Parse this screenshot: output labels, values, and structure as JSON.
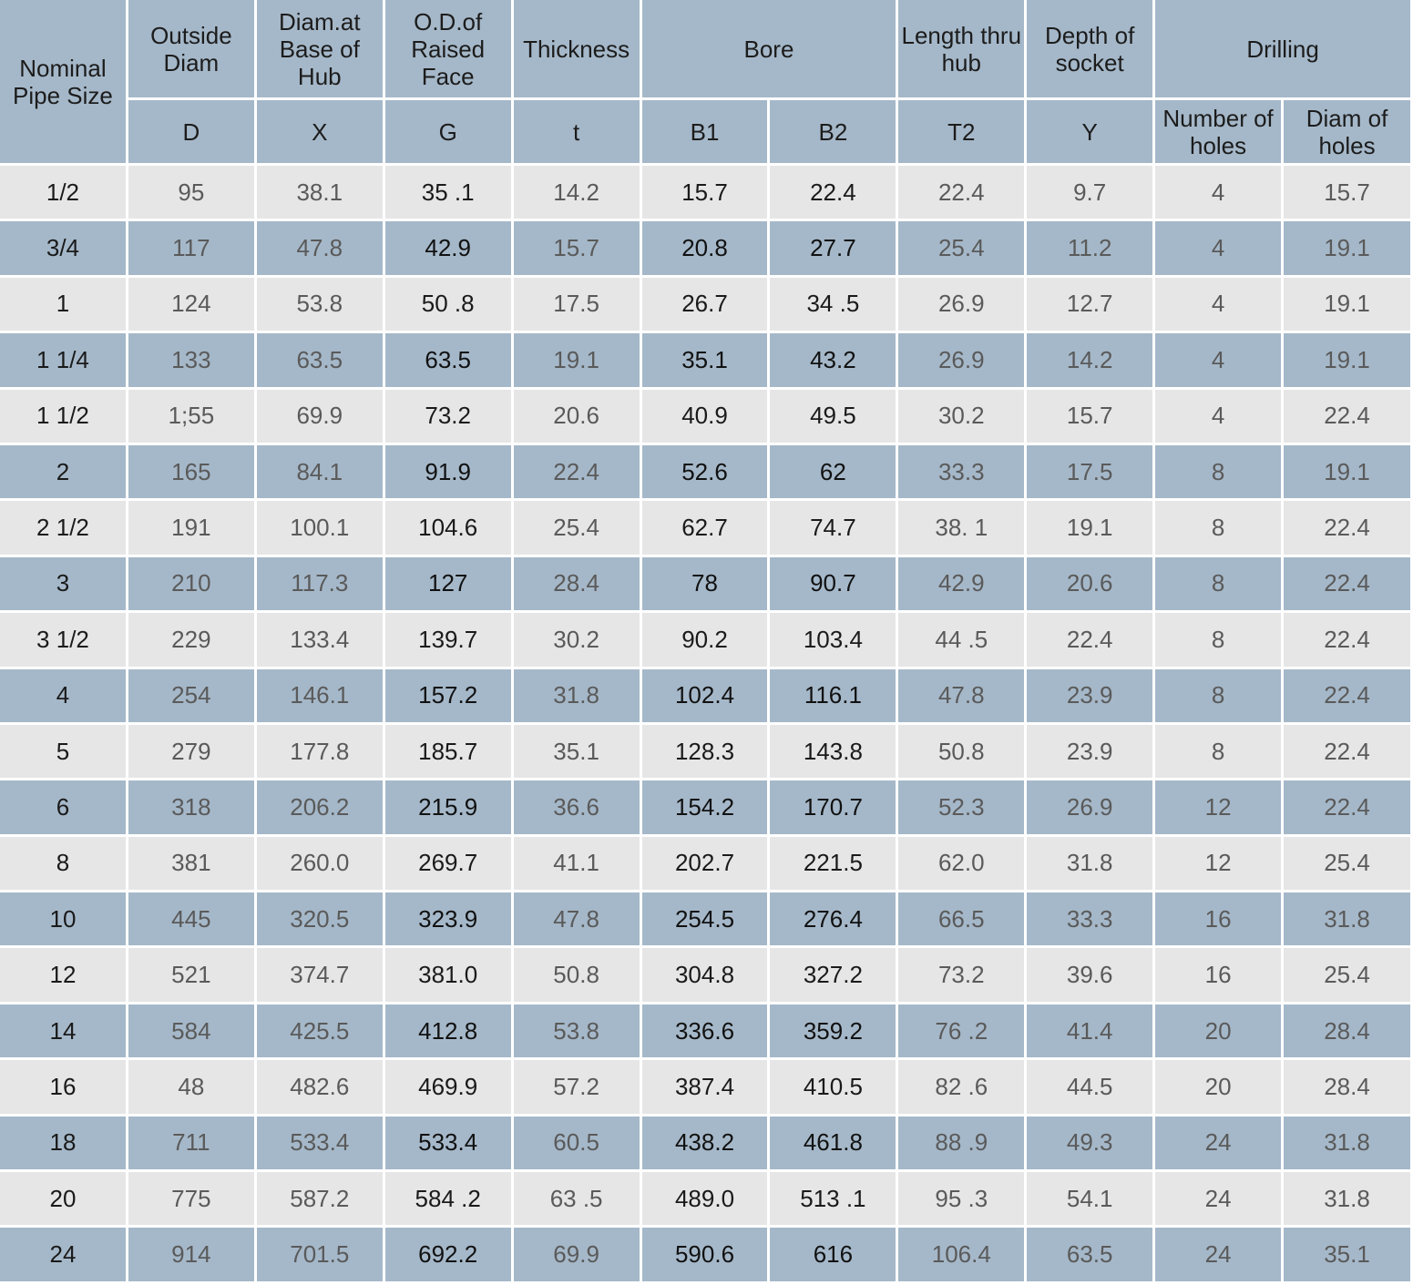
{
  "header": {
    "nominal_pipe_size": "Nominal Pipe Size",
    "outside_diam": "Outside Diam",
    "diam_base_hub": "Diam.at Base of Hub",
    "od_raised_face": "O.D.of Raised Face",
    "thickness": "Thickness",
    "bore": "Bore",
    "length_thru_hub": "Length thru hub",
    "depth_of_socket": "Depth of socket",
    "drilling": "Drilling",
    "sym_D": "D",
    "sym_X": "X",
    "sym_G": "G",
    "sym_t": "t",
    "sym_B1": "B1",
    "sym_B2": "B2",
    "sym_T2": "T2",
    "sym_Y": "Y",
    "number_of_holes": "Number of holes",
    "diam_of_holes": "Diam of holes"
  },
  "rows": [
    [
      "1/2",
      "95",
      "38.1",
      "35 .1",
      "14.2",
      "15.7",
      "22.4",
      "22.4",
      "9.7",
      "4",
      "15.7"
    ],
    [
      "3/4",
      "117",
      "47.8",
      "42.9",
      "15.7",
      "20.8",
      "27.7",
      "25.4",
      "11.2",
      "4",
      "19.1"
    ],
    [
      "1",
      "124",
      "53.8",
      "50 .8",
      "17.5",
      "26.7",
      "34 .5",
      "26.9",
      "12.7",
      "4",
      "19.1"
    ],
    [
      "1 1/4",
      "133",
      "63.5",
      "63.5",
      "19.1",
      "35.1",
      "43.2",
      "26.9",
      "14.2",
      "4",
      "19.1"
    ],
    [
      "1 1/2",
      "1;55",
      "69.9",
      "73.2",
      "20.6",
      "40.9",
      "49.5",
      "30.2",
      "15.7",
      "4",
      "22.4"
    ],
    [
      "2",
      "165",
      "84.1",
      "91.9",
      "22.4",
      "52.6",
      "62",
      "33.3",
      "17.5",
      "8",
      "19.1"
    ],
    [
      "2 1/2",
      "191",
      "100.1",
      "104.6",
      "25.4",
      "62.7",
      "74.7",
      "38. 1",
      "19.1",
      "8",
      "22.4"
    ],
    [
      "3",
      "210",
      "117.3",
      "127",
      "28.4",
      "78",
      "90.7",
      "42.9",
      "20.6",
      "8",
      "22.4"
    ],
    [
      "3 1/2",
      "229",
      "133.4",
      "139.7",
      "30.2",
      "90.2",
      "103.4",
      "44 .5",
      "22.4",
      "8",
      "22.4"
    ],
    [
      "4",
      "254",
      "146.1",
      "157.2",
      "31.8",
      "102.4",
      "116.1",
      "47.8",
      "23.9",
      "8",
      "22.4"
    ],
    [
      "5",
      "279",
      "177.8",
      "185.7",
      "35.1",
      "128.3",
      "143.8",
      "50.8",
      "23.9",
      "8",
      "22.4"
    ],
    [
      "6",
      "318",
      "206.2",
      "215.9",
      "36.6",
      "154.2",
      "170.7",
      "52.3",
      "26.9",
      "12",
      "22.4"
    ],
    [
      "8",
      "381",
      "260.0",
      "269.7",
      "41.1",
      "202.7",
      "221.5",
      "62.0",
      "31.8",
      "12",
      "25.4"
    ],
    [
      "10",
      "445",
      "320.5",
      "323.9",
      "47.8",
      "254.5",
      "276.4",
      "66.5",
      "33.3",
      "16",
      "31.8"
    ],
    [
      "12",
      "521",
      "374.7",
      "381.0",
      "50.8",
      "304.8",
      "327.2",
      "73.2",
      "39.6",
      "16",
      "25.4"
    ],
    [
      "14",
      "584",
      "425.5",
      "412.8",
      "53.8",
      "336.6",
      "359.2",
      "76 .2",
      "41.4",
      "20",
      "28.4"
    ],
    [
      "16",
      "48",
      "482.6",
      "469.9",
      "57.2",
      "387.4",
      "410.5",
      "82 .6",
      "44.5",
      "20",
      "28.4"
    ],
    [
      "18",
      "711",
      "533.4",
      "533.4",
      "60.5",
      "438.2",
      "461.8",
      "88 .9",
      "49.3",
      "24",
      "31.8"
    ],
    [
      "20",
      "775",
      "587.2",
      "584 .2",
      "63 .5",
      "489.0",
      "513 .1",
      "95 .3",
      "54.1",
      "24",
      "31.8"
    ],
    [
      "24",
      "914",
      "701.5",
      "692.2",
      "69.9",
      "590.6",
      "616",
      "106.4",
      "63.5",
      "24",
      "35.1"
    ]
  ]
}
